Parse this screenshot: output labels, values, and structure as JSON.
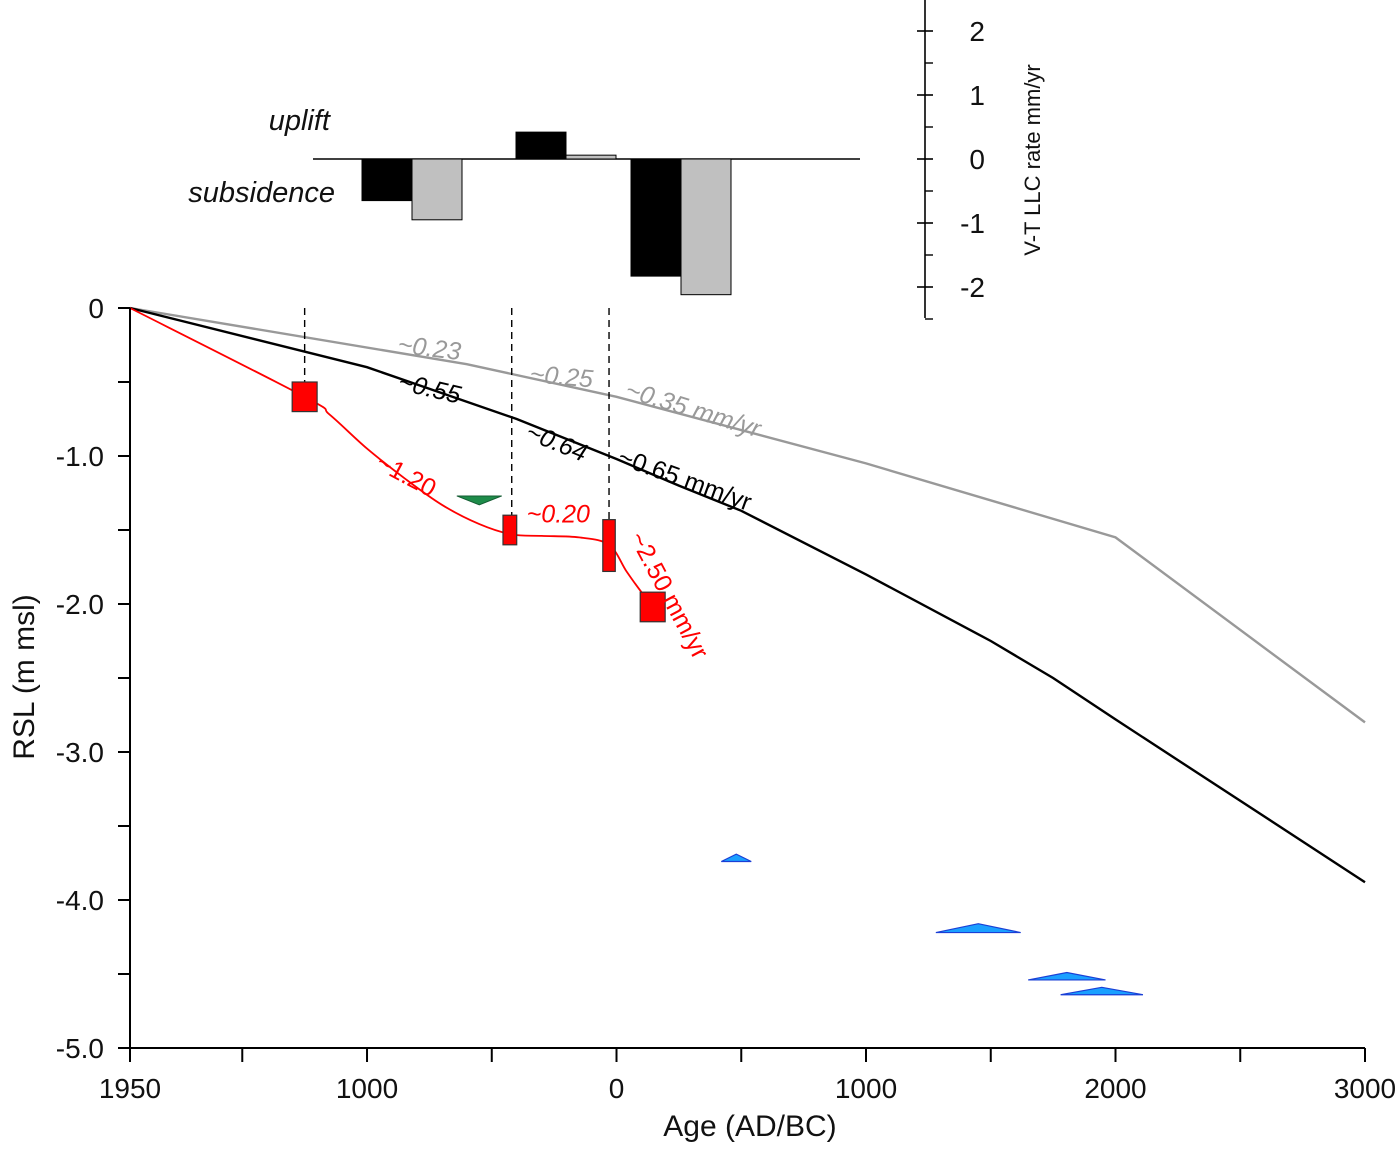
{
  "colors": {
    "black_curve": "#000000",
    "grey_curve": "#999999",
    "red_curve": "#ff0000",
    "red_box": "#ff0000",
    "green_marker": "#1e8c4a",
    "blue_marker": "#1aa0ff",
    "bar_black": "#000000",
    "bar_grey": "#c0c0c0"
  },
  "chart_data": [
    {
      "type": "line",
      "xlabel": "Age (AD/BC)",
      "ylabel": "RSL (m msl)",
      "xlim": [
        -1950,
        3000
      ],
      "ylim": [
        -5.0,
        0
      ],
      "x_major_ticks": [
        {
          "value": -1950,
          "label": "1950"
        },
        {
          "value": -1000,
          "label": "1000"
        },
        {
          "value": 0,
          "label": "0"
        },
        {
          "value": 1000,
          "label": "1000"
        },
        {
          "value": 2000,
          "label": "2000"
        },
        {
          "value": 3000,
          "label": "3000"
        }
      ],
      "x_minor_ticks": [
        -1500,
        -500,
        500,
        1500,
        2500
      ],
      "y_major_ticks": [
        {
          "value": 0,
          "label": "0"
        },
        {
          "value": -1.0,
          "label": "-1.0"
        },
        {
          "value": -2.0,
          "label": "-2.0"
        },
        {
          "value": -3.0,
          "label": "-3.0"
        },
        {
          "value": -4.0,
          "label": "-4.0"
        },
        {
          "value": -5.0,
          "label": "-5.0"
        }
      ],
      "y_minor_ticks": [
        -0.5,
        -1.5,
        -2.5,
        -3.5,
        -4.5
      ],
      "grid": false,
      "series": [
        {
          "color_key": "grey_curve",
          "x": [
            -1950,
            -600,
            0,
            1000,
            2000,
            3000
          ],
          "y": [
            0,
            -0.38,
            -0.6,
            -1.05,
            -1.55,
            -2.8
          ]
        },
        {
          "color_key": "black_curve",
          "x": [
            -1950,
            -1000,
            -400,
            0,
            250,
            500,
            1000,
            1500,
            1750,
            2000,
            3000
          ],
          "y": [
            0,
            -0.4,
            -0.75,
            -1.02,
            -1.2,
            -1.37,
            -1.8,
            -2.25,
            -2.5,
            -2.78,
            -3.88
          ]
        },
        {
          "color_key": "red_curve",
          "smooth": true,
          "x": [
            -1950,
            -1250,
            -1150,
            -1000,
            -850,
            -700,
            -550,
            -420,
            -300,
            -150,
            -30,
            40,
            100,
            140
          ],
          "y": [
            0,
            -0.6,
            -0.72,
            -0.95,
            -1.15,
            -1.33,
            -1.46,
            -1.53,
            -1.54,
            -1.55,
            -1.6,
            -1.78,
            -1.92,
            -2.0
          ]
        }
      ],
      "red_boxes": [
        {
          "x": [
            -1300,
            -1200
          ],
          "y": [
            -0.5,
            -0.7
          ]
        },
        {
          "x": [
            -455,
            -400
          ],
          "y": [
            -1.4,
            -1.6
          ]
        },
        {
          "x": [
            -55,
            -5
          ],
          "y": [
            -1.43,
            -1.78
          ]
        },
        {
          "x": [
            95,
            195
          ],
          "y": [
            -1.92,
            -2.12
          ]
        }
      ],
      "green_markers": [
        {
          "x": [
            -640,
            -460
          ],
          "y": -1.27,
          "tip": -1.33
        }
      ],
      "blue_markers": [
        {
          "x": [
            420,
            540
          ],
          "y": -3.74,
          "tip": -3.69
        },
        {
          "x": [
            1280,
            1620
          ],
          "y": -4.22,
          "tip": -4.16
        },
        {
          "x": [
            1650,
            1960
          ],
          "y": -4.54,
          "tip": -4.49
        },
        {
          "x": [
            1780,
            2110
          ],
          "y": -4.64,
          "tip": -4.59
        }
      ],
      "dashed_lines": [
        {
          "x": -1250,
          "y": [
            0.0,
            -0.52
          ]
        },
        {
          "x": -420,
          "y": [
            0.0,
            -1.58
          ]
        },
        {
          "x": -30,
          "y": [
            0.0,
            -1.43
          ]
        }
      ],
      "annotations": [
        {
          "text": "~0.23",
          "color_key": "grey_curve",
          "italic": true,
          "x": -880,
          "y": -0.3,
          "angle": 7
        },
        {
          "text": "~0.55",
          "color_key": "black_curve",
          "italic": true,
          "x": -880,
          "y": -0.55,
          "angle": 13
        },
        {
          "text": "~0.25",
          "color_key": "grey_curve",
          "italic": true,
          "x": -350,
          "y": -0.5,
          "angle": 5
        },
        {
          "text": "~0.64",
          "color_key": "black_curve",
          "italic": true,
          "x": -370,
          "y": -0.88,
          "angle": 22
        },
        {
          "text": "~0.35 mm/yr",
          "color_key": "grey_curve",
          "italic": true,
          "x": 30,
          "y": -0.6,
          "angle": 17
        },
        {
          "text": "~0.65 mm/yr",
          "color_key": "black_curve",
          "italic": false,
          "x": 0,
          "y": -1.05,
          "angle": 20
        },
        {
          "text": "~1.20",
          "color_key": "red_curve",
          "italic": false,
          "x": -970,
          "y": -1.08,
          "angle": 28
        },
        {
          "text": "~0.20",
          "color_key": "red_curve",
          "italic": true,
          "x": -360,
          "y": -1.45,
          "angle": 0
        },
        {
          "text": "~2.50 mm/yr",
          "color_key": "red_curve",
          "italic": false,
          "x": 50,
          "y": -1.55,
          "angle": 62
        }
      ]
    },
    {
      "type": "bar",
      "ylabel": "V-T LLC rate  mm/yr",
      "ylim": [
        -2.5,
        2.5
      ],
      "y_major_ticks": [
        {
          "value": 2,
          "label": "2"
        },
        {
          "value": 1,
          "label": "1"
        },
        {
          "value": 0,
          "label": "0"
        },
        {
          "value": -1,
          "label": "-1"
        },
        {
          "value": -2,
          "label": "-2"
        }
      ],
      "y_minor_ticks": [
        2.5,
        1.5,
        0.5,
        -0.5,
        -1.5,
        -2.5
      ],
      "groups": [
        {
          "black": -0.65,
          "grey": -0.95
        },
        {
          "black": 0.42,
          "grey": 0.06
        },
        {
          "black": -1.83,
          "grey": -2.12
        }
      ],
      "labels": {
        "uplift": "uplift",
        "subsidence": "subsidence"
      }
    }
  ]
}
